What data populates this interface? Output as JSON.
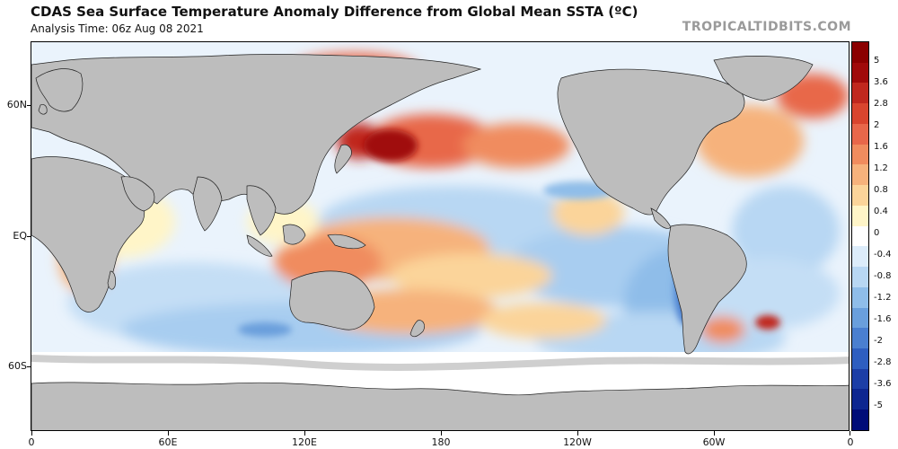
{
  "header": {
    "title": "CDAS Sea Surface Temperature Anomaly Difference from Global Mean SSTA (ºC)",
    "subtitle": "Analysis Time: 06z Aug 08 2021",
    "brand": "TROPICALTIDBITS.COM"
  },
  "map": {
    "lat_labels": [
      "60N",
      "EQ",
      "60S"
    ],
    "lon_labels": [
      "0",
      "60E",
      "120E",
      "180",
      "120W",
      "60W",
      "0"
    ],
    "land_color": "#bdbdbd",
    "ice_color": "#cfcfcf"
  },
  "colorbar": {
    "labels": [
      "5",
      "3.6",
      "2.8",
      "2",
      "1.6",
      "1.2",
      "0.8",
      "0.4",
      "0",
      "-0.4",
      "-0.8",
      "-1.2",
      "-1.6",
      "-2",
      "-2.8",
      "-3.6",
      "-5"
    ],
    "colors": [
      "#8b0000",
      "#a00a0a",
      "#c0281e",
      "#d9452e",
      "#e8674a",
      "#f08c5e",
      "#f6b27c",
      "#fbd49a",
      "#fff5c8",
      "#ffffff",
      "#dcecfa",
      "#b8d7f3",
      "#8fbde9",
      "#6a9fdc",
      "#4a7fd0",
      "#2e5ec0",
      "#1c3ea6",
      "#0d2690",
      "#000c78"
    ]
  }
}
